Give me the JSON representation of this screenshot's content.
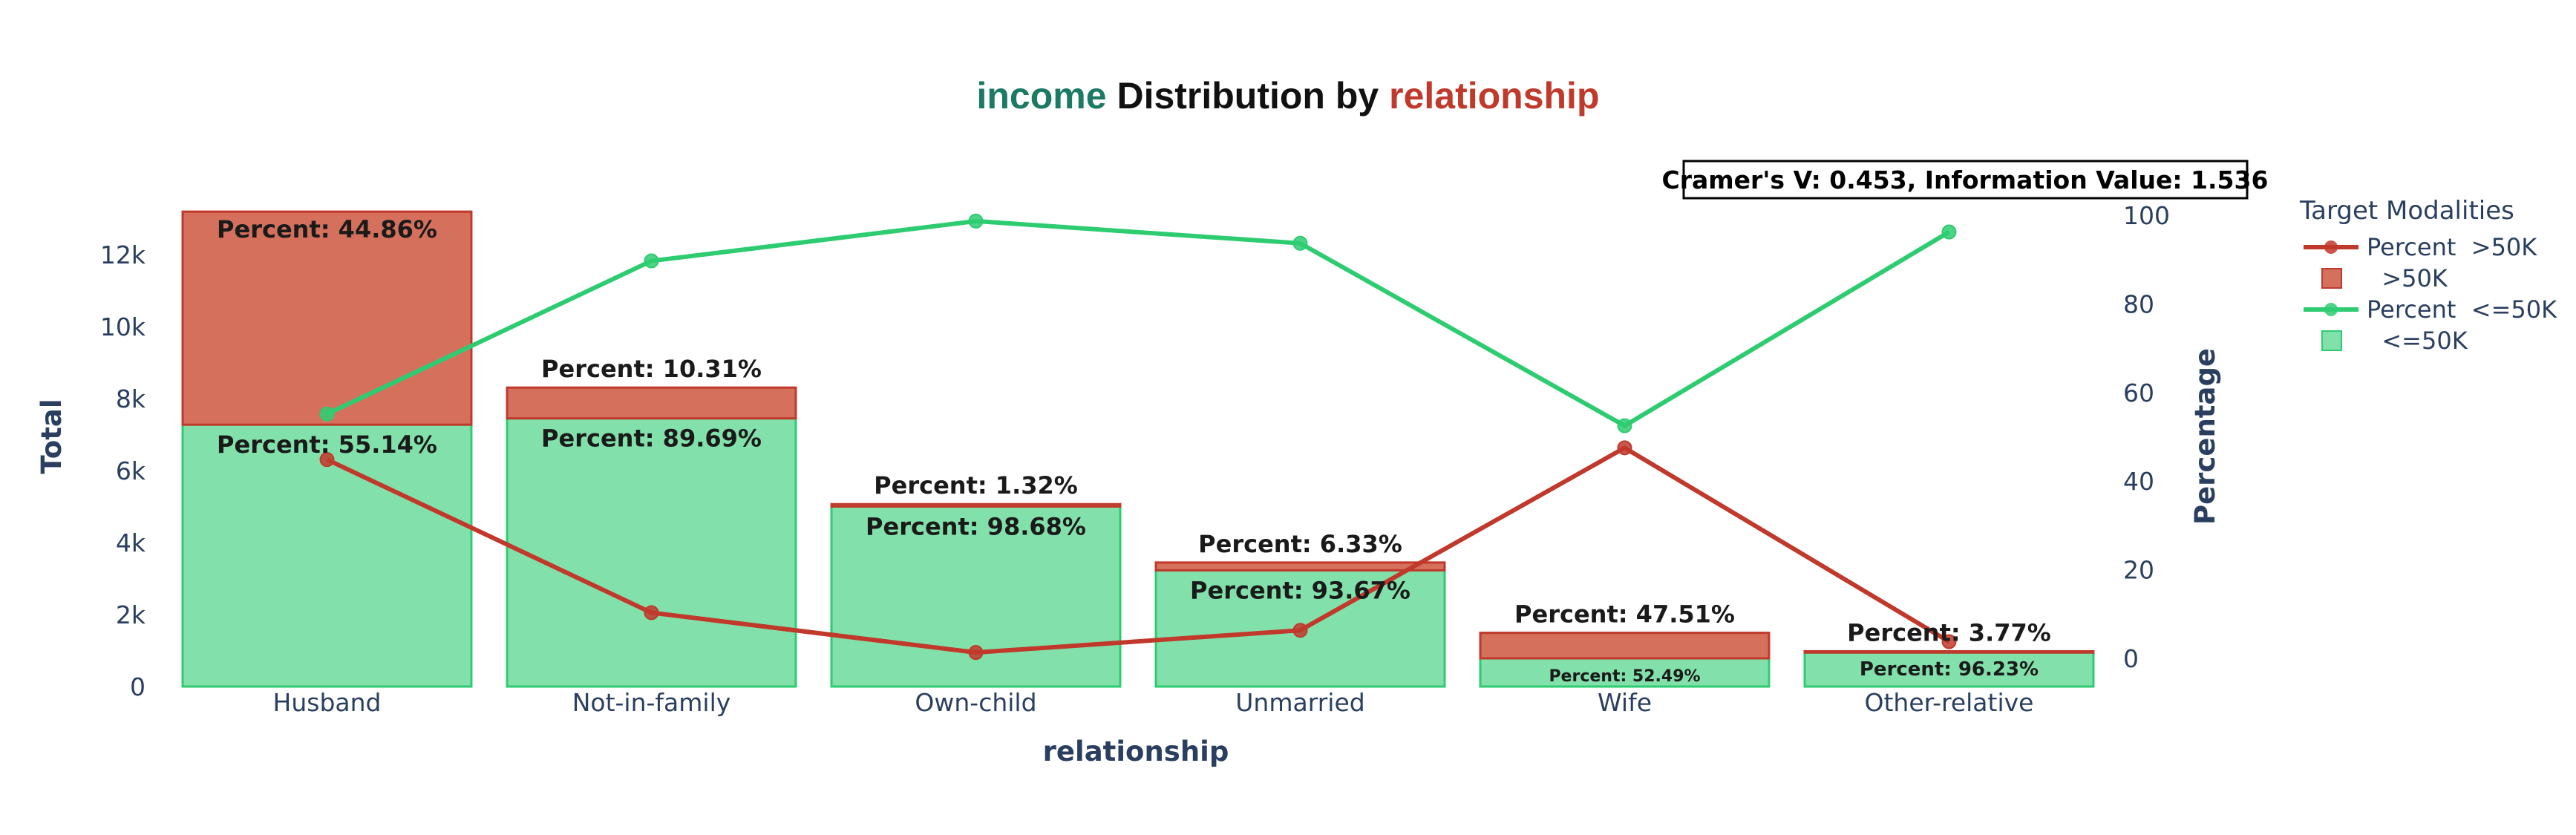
{
  "chart_data": {
    "type": "bar",
    "title": {
      "part1": "income",
      "part2": " Distribution by ",
      "part3": "relationship",
      "color1": "#1b7a63",
      "color2": "#111111",
      "color3": "#c0392b"
    },
    "xlabel": "relationship",
    "ylabel_left": "Total",
    "ylabel_right": "Percentage",
    "categories": [
      "Husband",
      "Not-in-family",
      "Own-child",
      "Unmarried",
      "Wife",
      "Other-relative"
    ],
    "ylim_left": [
      0,
      13200
    ],
    "yticks_left": [
      0,
      2000,
      4000,
      6000,
      8000,
      10000,
      12000
    ],
    "ytick_labels_left": [
      "0",
      "2k",
      "4k",
      "6k",
      "8k",
      "10k",
      "12k"
    ],
    "ylim_right": [
      0,
      100
    ],
    "yticks_right": [
      0,
      20,
      40,
      60,
      80,
      100
    ],
    "series": [
      {
        "name": "  <=50K",
        "kind": "bar",
        "color": "#82e0aa",
        "edge": "#2ecc71",
        "values": [
          7275,
          7449,
          5001,
          3228,
          784,
          944
        ],
        "labels": [
          "Percent: 55.14%",
          "Percent: 89.69%",
          "Percent: 98.68%",
          "Percent: 93.67%",
          "Percent: 52.49%",
          "Percent: 96.23%"
        ]
      },
      {
        "name": "  >50K",
        "kind": "bar",
        "color": "#d4705c",
        "edge": "#c0392b",
        "values": [
          5918,
          856,
          67,
          218,
          709,
          37
        ],
        "labels": [
          "Percent: 44.86%",
          "Percent: 10.31%",
          "Percent: 1.32%",
          "Percent: 6.33%",
          "Percent: 47.51%",
          "Percent: 3.77%"
        ]
      },
      {
        "name": "Percent  >50K",
        "kind": "line",
        "color": "#c0392b",
        "values": [
          44.86,
          10.31,
          1.32,
          6.33,
          47.51,
          3.77
        ]
      },
      {
        "name": "Percent  <=50K",
        "kind": "line",
        "color": "#2ecc71",
        "values": [
          55.14,
          89.69,
          98.68,
          93.67,
          52.49,
          96.23
        ]
      }
    ],
    "legend": {
      "title": "Target Modalities",
      "position": "top-right",
      "entries": [
        "Percent  >50K",
        "  >50K",
        "Percent  <=50K",
        "  <=50K"
      ]
    },
    "annotation": "Cramer's V: 0.453, Information Value: 1.536",
    "grid": false
  }
}
